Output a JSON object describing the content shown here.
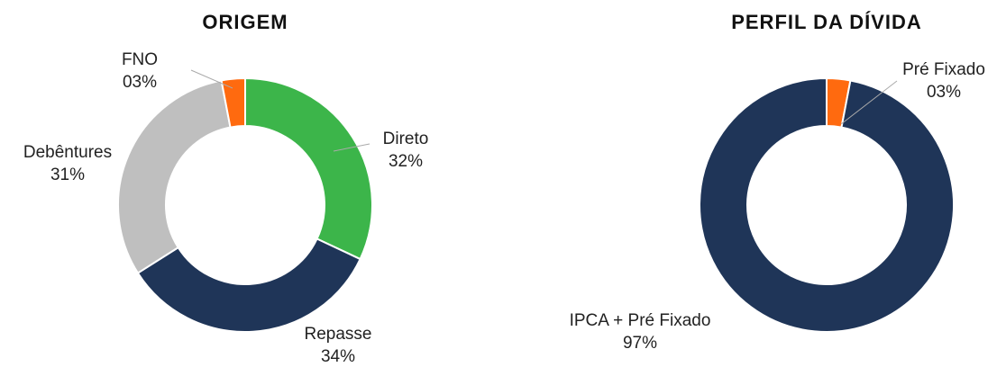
{
  "chart_data": [
    {
      "type": "donut",
      "title": "ORIGEM",
      "categories": [
        "Direto",
        "Repasse",
        "Debêntures",
        "FNO"
      ],
      "values": [
        32,
        34,
        31,
        3
      ],
      "value_labels": [
        "32%",
        "34%",
        "31%",
        "03%"
      ],
      "colors": [
        "#3cb54a",
        "#1f3558",
        "#bfbfbf",
        "#ff6a0f"
      ]
    },
    {
      "type": "donut",
      "title": "PERFIL DA DÍVIDA",
      "categories": [
        "Pré Fixado",
        "IPCA + Pré Fixado"
      ],
      "values": [
        3,
        97
      ],
      "value_labels": [
        "03%",
        "97%"
      ],
      "colors": [
        "#ff6a0f",
        "#1f3558"
      ]
    }
  ]
}
